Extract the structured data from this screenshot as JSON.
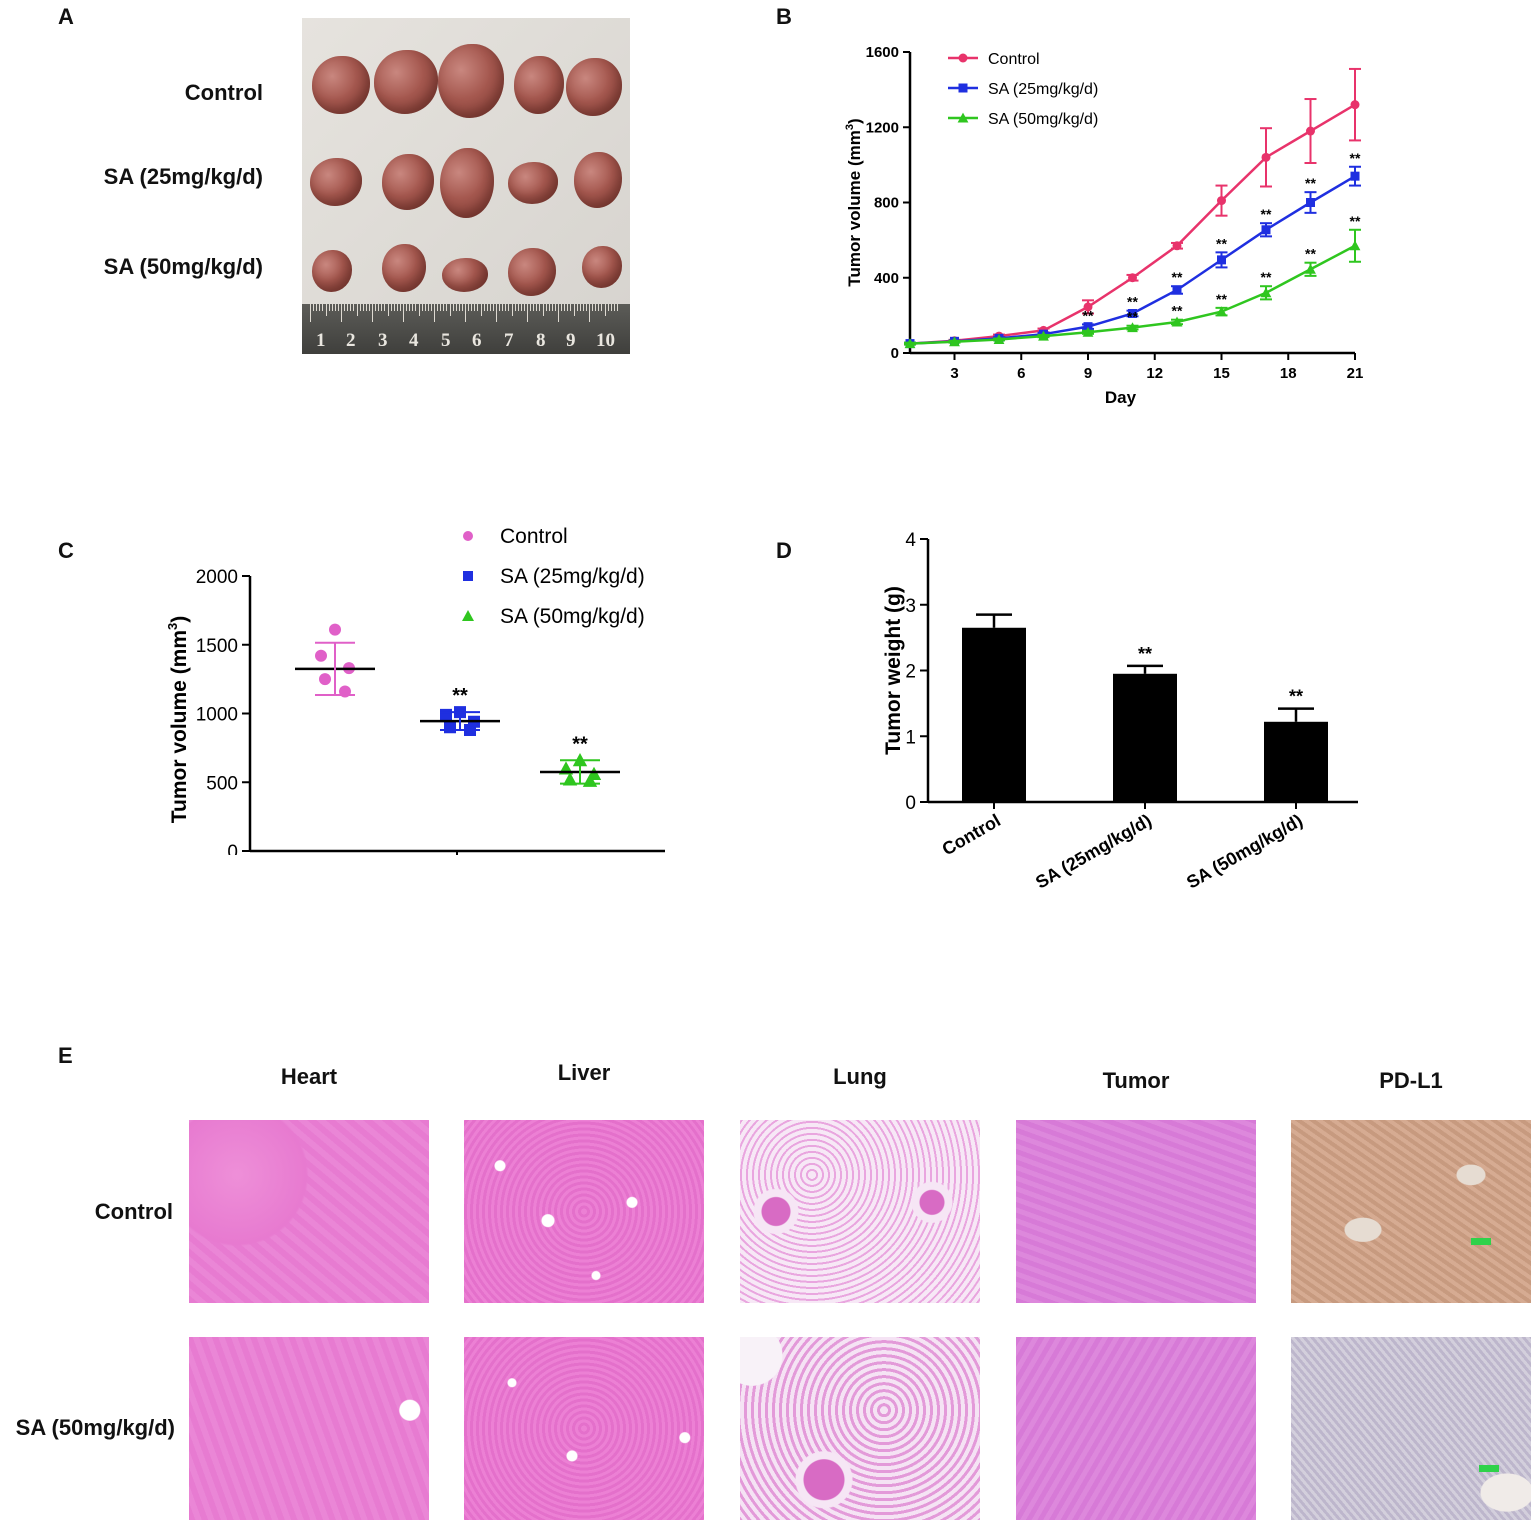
{
  "panels": {
    "a": {
      "letter": "A",
      "groups": [
        "Control",
        "SA (25mg/kg/d)",
        "SA (50mg/kg/d)"
      ],
      "ruler_numbers": [
        "1",
        "2",
        "3",
        "4",
        "5",
        "6",
        "7",
        "8",
        "9",
        "10"
      ]
    },
    "b": {
      "letter": "B"
    },
    "c": {
      "letter": "C"
    },
    "d": {
      "letter": "D"
    },
    "e": {
      "letter": "E",
      "tissues": [
        "Heart",
        "Liver",
        "Lung",
        "Tumor",
        "PD-L1"
      ],
      "rows": [
        "Control",
        "SA (50mg/kg/d)"
      ]
    }
  },
  "colors": {
    "control": "#e8336b",
    "sa25": "#1f2fe0",
    "sa50": "#2fc61f",
    "control_dots": "#e060c8",
    "bar": "#000000"
  },
  "chart_data": [
    {
      "id": "B",
      "type": "line",
      "xlabel": "Day",
      "ylabel": "Tumor volume (mm3)",
      "xlim": [
        1,
        21
      ],
      "ylim": [
        0,
        1600
      ],
      "xticks": [
        3,
        6,
        9,
        12,
        15,
        18,
        21
      ],
      "yticks": [
        0,
        400,
        800,
        1200,
        1600
      ],
      "legend": "top-left",
      "x": [
        1,
        3,
        5,
        7,
        9,
        11,
        13,
        15,
        17,
        19,
        21
      ],
      "series": [
        {
          "name": "Control",
          "marker": "circle",
          "values": [
            50,
            65,
            90,
            120,
            245,
            400,
            570,
            810,
            1040,
            1180,
            1320
          ],
          "errors": [
            5,
            5,
            8,
            10,
            35,
            15,
            15,
            80,
            155,
            170,
            190
          ]
        },
        {
          "name": "SA (25mg/kg/d)",
          "marker": "square",
          "values": [
            50,
            62,
            78,
            100,
            140,
            210,
            335,
            495,
            655,
            800,
            940
          ],
          "errors": [
            5,
            5,
            6,
            8,
            12,
            15,
            20,
            40,
            35,
            55,
            50
          ],
          "annotations": [
            "",
            "",
            "",
            "",
            "**",
            "**",
            "**",
            "**",
            "**",
            "**",
            "**"
          ]
        },
        {
          "name": "SA (50mg/kg/d)",
          "marker": "triangle",
          "values": [
            50,
            60,
            72,
            90,
            110,
            135,
            165,
            220,
            320,
            445,
            570
          ],
          "errors": [
            5,
            5,
            5,
            6,
            8,
            10,
            12,
            20,
            35,
            35,
            85
          ],
          "annotations": [
            "",
            "",
            "",
            "",
            "",
            "**",
            "**",
            "**",
            "**",
            "**",
            "**"
          ]
        }
      ]
    },
    {
      "id": "C",
      "type": "scatter",
      "ylabel": "Tumor volume (mm3)",
      "ylim": [
        0,
        2000
      ],
      "yticks": [
        0,
        500,
        1000,
        1500,
        2000
      ],
      "legend": "top",
      "series": [
        {
          "name": "Control",
          "marker": "circle",
          "points": [
            1610,
            1420,
            1330,
            1250,
            1160
          ],
          "mean": 1325,
          "sd": 190,
          "annotation": ""
        },
        {
          "name": "SA (25mg/kg/d)",
          "marker": "square",
          "points": [
            1010,
            990,
            940,
            900,
            880
          ],
          "mean": 945,
          "sd": 65,
          "annotation": "**"
        },
        {
          "name": "SA (50mg/kg/d)",
          "marker": "triangle",
          "points": [
            660,
            600,
            560,
            520,
            510
          ],
          "mean": 575,
          "sd": 85,
          "annotation": "**"
        }
      ]
    },
    {
      "id": "D",
      "type": "bar",
      "ylabel": "Tumor weight (g)",
      "ylim": [
        0,
        4
      ],
      "yticks": [
        0,
        1,
        2,
        3,
        4
      ],
      "categories": [
        "Control",
        "SA (25mg/kg/d)",
        "SA (50mg/kg/d)"
      ],
      "values": [
        2.65,
        1.95,
        1.22
      ],
      "errors": [
        0.2,
        0.12,
        0.2
      ],
      "annotations": [
        "",
        "**",
        "**"
      ]
    }
  ]
}
